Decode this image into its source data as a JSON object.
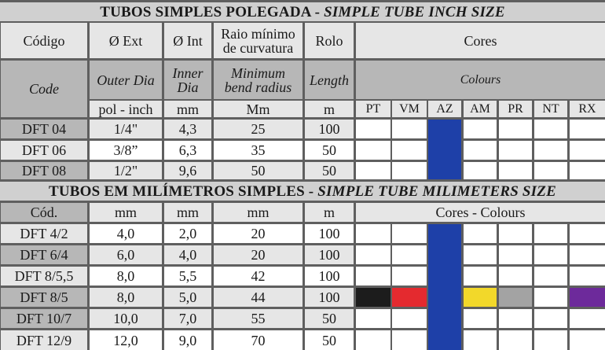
{
  "inch_table": {
    "title_pt": "TUBOS SIMPLES POLEGADA",
    "title_sep": " - ",
    "title_en": "SIMPLE TUBE INCH SIZE",
    "headers_pt": [
      "Código",
      "Ø Ext",
      "Ø Int",
      "Raio mínimo de curvatura",
      "Rolo",
      "Cores"
    ],
    "headers_en": [
      "Code",
      "Outer Dia",
      "Inner Dia",
      "Minimum bend radius",
      "Length",
      "Colours"
    ],
    "units": [
      "pol - inch",
      "mm",
      "Mm",
      "m"
    ],
    "colour_codes": [
      "PT",
      "VM",
      "AZ",
      "AM",
      "PR",
      "NT",
      "RX"
    ],
    "rows": [
      {
        "code": "DFT 04",
        "ext": "1/4\"",
        "int": "4,3",
        "radius": "25",
        "length": "100"
      },
      {
        "code": "DFT 06",
        "ext": "3/8”",
        "int": "6,3",
        "radius": "35",
        "length": "50"
      },
      {
        "code": "DFT 08",
        "ext": "1/2\"",
        "int": "9,6",
        "radius": "50",
        "length": "50"
      }
    ]
  },
  "mm_table": {
    "title_pt": "TUBOS EM MILÍMETROS SIMPLES",
    "title_sep": " - ",
    "title_en": "SIMPLE TUBE MILIMETERS SIZE",
    "headers": [
      "Cód.",
      "mm",
      "mm",
      "mm",
      "m",
      "Cores - Colours"
    ],
    "rows": [
      {
        "code": "DFT 4/2",
        "ext": "4,0",
        "int": "2,0",
        "radius": "20",
        "length": "100"
      },
      {
        "code": "DFT 6/4",
        "ext": "6,0",
        "int": "4,0",
        "radius": "20",
        "length": "100"
      },
      {
        "code": "DFT 8/5,5",
        "ext": "8,0",
        "int": "5,5",
        "radius": "42",
        "length": "100"
      },
      {
        "code": "DFT 8/5",
        "ext": "8,0",
        "int": "5,0",
        "radius": "44",
        "length": "100"
      },
      {
        "code": "DFT 10/7",
        "ext": "10,0",
        "int": "7,0",
        "radius": "55",
        "length": "50"
      },
      {
        "code": "DFT 12/9",
        "ext": "12,0",
        "int": "9,0",
        "radius": "70",
        "length": "50"
      }
    ]
  },
  "colors": {
    "AZ": "#1e40a8",
    "PT": "#1c1c1c",
    "VM": "#e42a2f",
    "AM": "#f2d82a",
    "PR": "#a3a3a3",
    "RX": "#6d2a9b"
  },
  "colour_availability": {
    "inch_rows": [
      [
        "AZ"
      ],
      [
        "AZ"
      ],
      [
        "AZ"
      ]
    ],
    "mm_rows": [
      [
        "AZ"
      ],
      [
        "AZ"
      ],
      [
        "AZ"
      ],
      [
        "PT",
        "VM",
        "AZ",
        "AM",
        "PR",
        "RX"
      ],
      [
        "AZ"
      ],
      [
        "AZ"
      ]
    ]
  }
}
